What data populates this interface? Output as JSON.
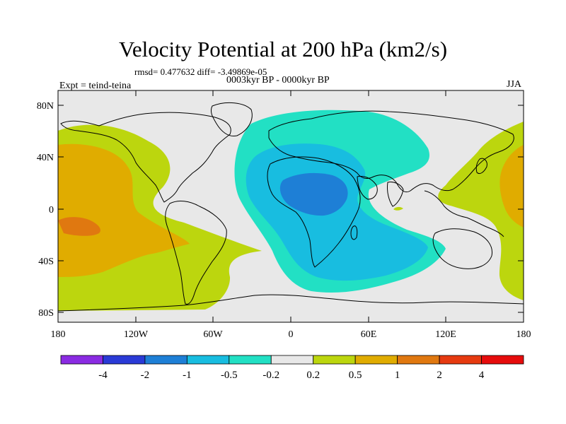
{
  "title": "Velocity Potential at 200 hPa (km2/s)",
  "stats": "rmsd= 0.477632 diff= -3.49869e-05",
  "experiment_period": "0003kyr BP - 0000kyr BP",
  "experiment_name": "Expt = teind-teina",
  "season": "JJA",
  "map": {
    "projection": "cylindrical-equidistant",
    "lon_range": [
      -180,
      180
    ],
    "lat_range": [
      -90,
      90
    ],
    "lat_ticks": [
      "80N",
      "40N",
      "0",
      "40S",
      "80S"
    ],
    "lon_ticks": [
      "180",
      "120W",
      "60W",
      "0",
      "60E",
      "120E",
      "180"
    ],
    "background_color": "#e8e8e8"
  },
  "colorbar": {
    "levels": [
      "-4",
      "-2",
      "-1",
      "-0.5",
      "-0.2",
      "0.2",
      "0.5",
      "1",
      "2",
      "4"
    ],
    "colors": [
      "#8a2be2",
      "#2a3ad6",
      "#1e7fd6",
      "#18bde0",
      "#22e0c4",
      "#e8e8e8",
      "#bcd60e",
      "#e0ac00",
      "#e07810",
      "#e63a10",
      "#e60c0c"
    ]
  }
}
